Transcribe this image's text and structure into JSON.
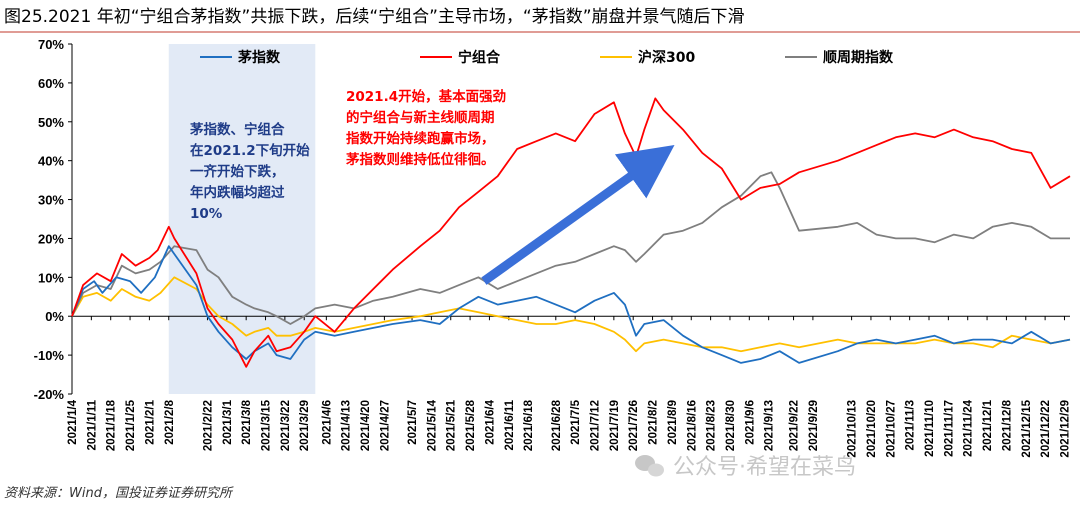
{
  "figure": {
    "title": "图25.2021 年初“宁组合茅指数”共振下跌，后续“宁组合”主导市场，“茅指数”崩盘并景气随后下滑",
    "source": "资料来源：Wind，国投证券证券研究所",
    "watermark": "公众号·希望在菜鸟",
    "watermark_icon": "wechat-icon"
  },
  "annotations": {
    "left_box": [
      "茅指数、宁组合",
      "在2021.2下旬开始",
      "一齐开始下跌，",
      "年内跌幅均超过",
      "10%"
    ],
    "left_color": "#1f3c88",
    "right_box": [
      "2021.4开始，基本面强劲",
      "的宁组合与新主线顺周期",
      "指数开始持续跑赢市场，",
      "茅指数则维持低位徘徊。"
    ],
    "right_color": "#ff0000",
    "highlight_period": [
      "2021/2/8",
      "2021/4/2"
    ],
    "arrow": {
      "from": [
        "2021/6/2",
        0.09
      ],
      "to": [
        "2021/8/2",
        0.4
      ],
      "color": "#3a6fd8"
    }
  },
  "chart_data": {
    "type": "line",
    "title": "",
    "xlabel": "",
    "ylabel": "",
    "ylim": [
      -0.2,
      0.7
    ],
    "yticks": [
      "-20%",
      "-10%",
      "0%",
      "10%",
      "20%",
      "30%",
      "40%",
      "50%",
      "60%",
      "70%"
    ],
    "y_tick_values": [
      -0.2,
      -0.1,
      0,
      0.1,
      0.2,
      0.3,
      0.4,
      0.5,
      0.6,
      0.7
    ],
    "x_tick_labels": [
      "2021/1/4",
      "2021/1/11",
      "2021/1/18",
      "2021/1/25",
      "2021/2/1",
      "2021/2/8",
      "2021/2/22",
      "2021/3/1",
      "2021/3/8",
      "2021/3/15",
      "2021/3/22",
      "2021/3/29",
      "2021/4/6",
      "2021/4/13",
      "2021/4/20",
      "2021/4/27",
      "2021/5/7",
      "2021/5/14",
      "2021/5/21",
      "2021/5/28",
      "2021/6/4",
      "2021/6/11",
      "2021/6/18",
      "2021/6/28",
      "2021/7/5",
      "2021/7/12",
      "2021/7/19",
      "2021/7/26",
      "2021/8/2",
      "2021/8/9",
      "2021/8/16",
      "2021/8/23",
      "2021/8/30",
      "2021/9/6",
      "2021/9/13",
      "2021/9/22",
      "2021/9/29",
      "2021/10/13",
      "2021/10/20",
      "2021/10/27",
      "2021/11/3",
      "2021/11/10",
      "2021/11/17",
      "2021/11/24",
      "2021/12/1",
      "2021/12/8",
      "2021/12/15",
      "2021/12/22",
      "2021/12/29"
    ],
    "grid": false,
    "legend_position": "top",
    "series": [
      {
        "name": "茅指数",
        "color": "#1f6fc1",
        "x": [
          "2021/1/4",
          "2021/1/8",
          "2021/1/12",
          "2021/1/15",
          "2021/1/20",
          "2021/1/25",
          "2021/1/29",
          "2021/2/3",
          "2021/2/8",
          "2021/2/10",
          "2021/2/18",
          "2021/2/22",
          "2021/2/26",
          "2021/3/3",
          "2021/3/8",
          "2021/3/11",
          "2021/3/16",
          "2021/3/19",
          "2021/3/24",
          "2021/3/29",
          "2021/4/2",
          "2021/4/9",
          "2021/4/16",
          "2021/4/23",
          "2021/4/30",
          "2021/5/10",
          "2021/5/17",
          "2021/5/24",
          "2021/5/31",
          "2021/6/7",
          "2021/6/14",
          "2021/6/21",
          "2021/6/28",
          "2021/7/5",
          "2021/7/12",
          "2021/7/19",
          "2021/7/23",
          "2021/7/27",
          "2021/7/30",
          "2021/8/6",
          "2021/8/13",
          "2021/8/20",
          "2021/8/27",
          "2021/9/3",
          "2021/9/10",
          "2021/9/17",
          "2021/9/24",
          "2021/10/8",
          "2021/10/15",
          "2021/10/22",
          "2021/10/29",
          "2021/11/5",
          "2021/11/12",
          "2021/11/19",
          "2021/11/26",
          "2021/12/3",
          "2021/12/10",
          "2021/12/17",
          "2021/12/24",
          "2021/12/31"
        ],
        "y": [
          0.0,
          0.07,
          0.09,
          0.06,
          0.1,
          0.09,
          0.06,
          0.1,
          0.18,
          0.16,
          0.08,
          0.0,
          -0.04,
          -0.08,
          -0.11,
          -0.09,
          -0.07,
          -0.1,
          -0.11,
          -0.06,
          -0.04,
          -0.05,
          -0.04,
          -0.03,
          -0.02,
          -0.01,
          -0.02,
          0.02,
          0.05,
          0.03,
          0.04,
          0.05,
          0.03,
          0.01,
          0.04,
          0.06,
          0.03,
          -0.05,
          -0.02,
          -0.01,
          -0.05,
          -0.08,
          -0.1,
          -0.12,
          -0.11,
          -0.09,
          -0.12,
          -0.09,
          -0.07,
          -0.06,
          -0.07,
          -0.06,
          -0.05,
          -0.07,
          -0.06,
          -0.06,
          -0.07,
          -0.04,
          -0.07,
          -0.06
        ]
      },
      {
        "name": "宁组合",
        "color": "#ff0000",
        "x": [
          "2021/1/4",
          "2021/1/8",
          "2021/1/13",
          "2021/1/18",
          "2021/1/22",
          "2021/1/27",
          "2021/2/1",
          "2021/2/4",
          "2021/2/8",
          "2021/2/10",
          "2021/2/18",
          "2021/2/22",
          "2021/2/26",
          "2021/3/3",
          "2021/3/8",
          "2021/3/11",
          "2021/3/16",
          "2021/3/19",
          "2021/3/24",
          "2021/3/29",
          "2021/4/2",
          "2021/4/9",
          "2021/4/16",
          "2021/4/23",
          "2021/4/30",
          "2021/5/10",
          "2021/5/17",
          "2021/5/24",
          "2021/5/31",
          "2021/6/7",
          "2021/6/14",
          "2021/6/21",
          "2021/6/28",
          "2021/7/5",
          "2021/7/12",
          "2021/7/19",
          "2021/7/23",
          "2021/7/27",
          "2021/7/30",
          "2021/8/3",
          "2021/8/6",
          "2021/8/13",
          "2021/8/20",
          "2021/8/27",
          "2021/9/3",
          "2021/9/10",
          "2021/9/17",
          "2021/9/24",
          "2021/10/8",
          "2021/10/15",
          "2021/10/22",
          "2021/10/29",
          "2021/11/5",
          "2021/11/12",
          "2021/11/19",
          "2021/11/26",
          "2021/12/3",
          "2021/12/10",
          "2021/12/17",
          "2021/12/24",
          "2021/12/31"
        ],
        "y": [
          0.0,
          0.08,
          0.11,
          0.09,
          0.16,
          0.13,
          0.15,
          0.17,
          0.23,
          0.2,
          0.11,
          0.02,
          -0.02,
          -0.06,
          -0.13,
          -0.09,
          -0.05,
          -0.09,
          -0.08,
          -0.04,
          0.0,
          -0.04,
          0.02,
          0.07,
          0.12,
          0.18,
          0.22,
          0.28,
          0.32,
          0.36,
          0.43,
          0.45,
          0.47,
          0.45,
          0.52,
          0.55,
          0.47,
          0.41,
          0.48,
          0.56,
          0.53,
          0.48,
          0.42,
          0.38,
          0.3,
          0.33,
          0.34,
          0.37,
          0.4,
          0.42,
          0.44,
          0.46,
          0.47,
          0.46,
          0.48,
          0.46,
          0.45,
          0.43,
          0.42,
          0.33,
          0.36
        ]
      },
      {
        "name": "沪深300",
        "color": "#ffc000",
        "x": [
          "2021/1/4",
          "2021/1/8",
          "2021/1/13",
          "2021/1/18",
          "2021/1/22",
          "2021/1/27",
          "2021/2/1",
          "2021/2/5",
          "2021/2/10",
          "2021/2/18",
          "2021/2/22",
          "2021/2/26",
          "2021/3/3",
          "2021/3/8",
          "2021/3/11",
          "2021/3/16",
          "2021/3/19",
          "2021/3/24",
          "2021/3/29",
          "2021/4/2",
          "2021/4/9",
          "2021/4/16",
          "2021/4/23",
          "2021/4/30",
          "2021/5/10",
          "2021/5/17",
          "2021/5/24",
          "2021/5/31",
          "2021/6/7",
          "2021/6/14",
          "2021/6/21",
          "2021/6/28",
          "2021/7/5",
          "2021/7/12",
          "2021/7/19",
          "2021/7/23",
          "2021/7/27",
          "2021/7/30",
          "2021/8/6",
          "2021/8/13",
          "2021/8/20",
          "2021/8/27",
          "2021/9/3",
          "2021/9/10",
          "2021/9/17",
          "2021/9/24",
          "2021/10/8",
          "2021/10/15",
          "2021/10/22",
          "2021/10/29",
          "2021/11/5",
          "2021/11/12",
          "2021/11/19",
          "2021/11/26",
          "2021/12/3",
          "2021/12/10",
          "2021/12/17",
          "2021/12/24",
          "2021/12/31"
        ],
        "y": [
          0.0,
          0.05,
          0.06,
          0.04,
          0.07,
          0.05,
          0.04,
          0.06,
          0.1,
          0.07,
          0.03,
          0.0,
          -0.02,
          -0.05,
          -0.04,
          -0.03,
          -0.05,
          -0.05,
          -0.04,
          -0.03,
          -0.04,
          -0.03,
          -0.02,
          -0.01,
          0.0,
          0.01,
          0.02,
          0.01,
          0.0,
          -0.01,
          -0.02,
          -0.02,
          -0.01,
          -0.02,
          -0.04,
          -0.06,
          -0.09,
          -0.07,
          -0.06,
          -0.07,
          -0.08,
          -0.08,
          -0.09,
          -0.08,
          -0.07,
          -0.08,
          -0.06,
          -0.07,
          -0.07,
          -0.07,
          -0.07,
          -0.06,
          -0.07,
          -0.07,
          -0.08,
          -0.05,
          -0.06,
          -0.07,
          -0.06
        ]
      },
      {
        "name": "顺周期指数",
        "color": "#7f7f7f",
        "x": [
          "2021/1/4",
          "2021/1/8",
          "2021/1/13",
          "2021/1/18",
          "2021/1/22",
          "2021/1/27",
          "2021/2/1",
          "2021/2/5",
          "2021/2/10",
          "2021/2/18",
          "2021/2/22",
          "2021/2/26",
          "2021/3/3",
          "2021/3/8",
          "2021/3/11",
          "2021/3/16",
          "2021/3/19",
          "2021/3/24",
          "2021/3/29",
          "2021/4/2",
          "2021/4/9",
          "2021/4/16",
          "2021/4/23",
          "2021/4/30",
          "2021/5/10",
          "2021/5/17",
          "2021/5/24",
          "2021/5/31",
          "2021/6/7",
          "2021/6/14",
          "2021/6/21",
          "2021/6/28",
          "2021/7/5",
          "2021/7/12",
          "2021/7/19",
          "2021/7/23",
          "2021/7/27",
          "2021/7/30",
          "2021/8/6",
          "2021/8/13",
          "2021/8/20",
          "2021/8/27",
          "2021/9/3",
          "2021/9/10",
          "2021/9/14",
          "2021/9/17",
          "2021/9/24",
          "2021/10/8",
          "2021/10/15",
          "2021/10/22",
          "2021/10/29",
          "2021/11/5",
          "2021/11/12",
          "2021/11/19",
          "2021/11/26",
          "2021/12/3",
          "2021/12/10",
          "2021/12/17",
          "2021/12/24",
          "2021/12/31"
        ],
        "y": [
          0.0,
          0.06,
          0.08,
          0.07,
          0.13,
          0.11,
          0.12,
          0.14,
          0.18,
          0.17,
          0.12,
          0.1,
          0.05,
          0.03,
          0.02,
          0.01,
          0.0,
          -0.02,
          0.0,
          0.02,
          0.03,
          0.02,
          0.04,
          0.05,
          0.07,
          0.06,
          0.08,
          0.1,
          0.07,
          0.09,
          0.11,
          0.13,
          0.14,
          0.16,
          0.18,
          0.17,
          0.14,
          0.16,
          0.21,
          0.22,
          0.24,
          0.28,
          0.31,
          0.36,
          0.37,
          0.33,
          0.22,
          0.23,
          0.24,
          0.21,
          0.2,
          0.2,
          0.19,
          0.21,
          0.2,
          0.23,
          0.24,
          0.23,
          0.2,
          0.2
        ]
      }
    ]
  }
}
